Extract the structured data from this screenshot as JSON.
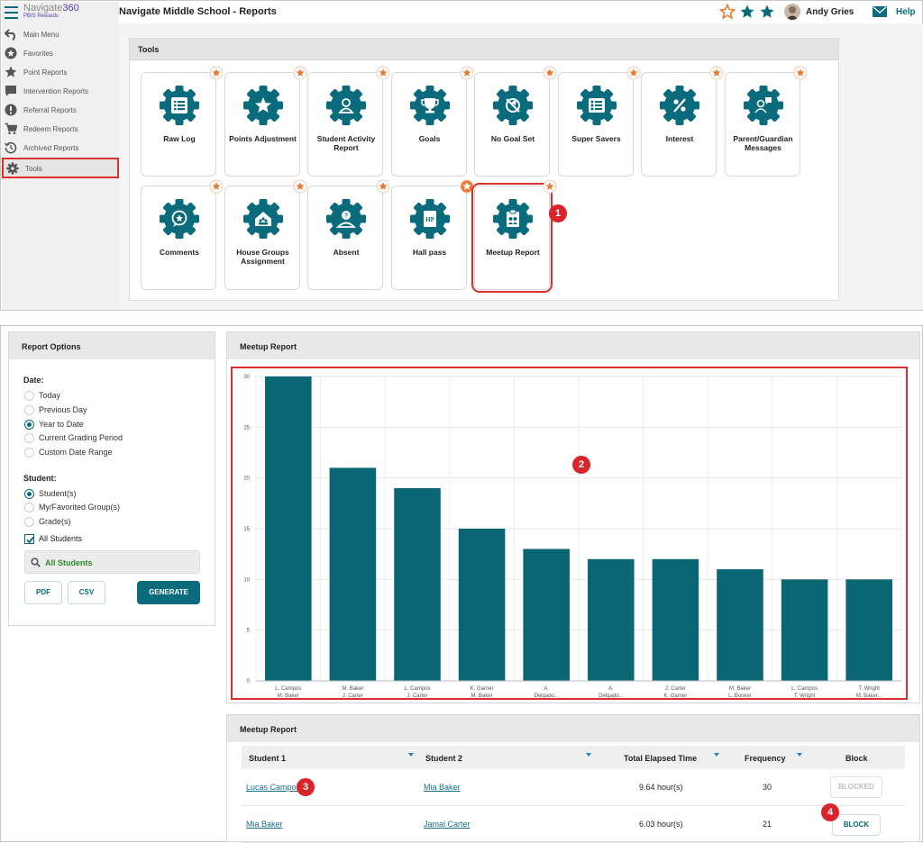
{
  "app": {
    "logo_text": "Navigate",
    "logo_num": "360",
    "logo_sub": "PBIS Rewards",
    "page_title": "Navigate Middle School - Reports"
  },
  "header": {
    "user_name": "Andy Gries",
    "help_label": "Help"
  },
  "sidebar": {
    "items": [
      {
        "label": "Main Menu",
        "icon": "back-arrow-icon"
      },
      {
        "label": "Favorites",
        "icon": "star-circle-icon"
      },
      {
        "label": "Point Reports",
        "icon": "star-icon"
      },
      {
        "label": "Intervention Reports",
        "icon": "speech-bubble-icon"
      },
      {
        "label": "Referral Reports",
        "icon": "alert-icon"
      },
      {
        "label": "Redeem Reports",
        "icon": "cart-icon"
      },
      {
        "label": "Archived Reports",
        "icon": "history-icon"
      },
      {
        "label": "Tools",
        "icon": "gear-icon"
      }
    ]
  },
  "tools": {
    "title": "Tools",
    "cards": [
      {
        "label": "Raw Log",
        "icon": "list-icon"
      },
      {
        "label": "Points Adjustment",
        "icon": "star-icon"
      },
      {
        "label": "Student Activity Report",
        "icon": "person-icon"
      },
      {
        "label": "Goals",
        "icon": "trophy-icon"
      },
      {
        "label": "No Goal Set",
        "icon": "no-goal-icon"
      },
      {
        "label": "Super Savers",
        "icon": "savers-list-icon"
      },
      {
        "label": "Interest",
        "icon": "percent-icon"
      },
      {
        "label": "Parent/Guardian Messages",
        "icon": "parent-message-icon"
      },
      {
        "label": "Comments",
        "icon": "comment-icon"
      },
      {
        "label": "House Groups Assignment",
        "icon": "house-icon"
      },
      {
        "label": "Absent",
        "icon": "absent-person-icon"
      },
      {
        "label": "Hall pass",
        "icon": "hall-pass-icon"
      },
      {
        "label": "Meetup Report",
        "icon": "meetup-clipboard-icon"
      }
    ]
  },
  "markers": [
    "1",
    "2",
    "3",
    "4"
  ],
  "options": {
    "title": "Report Options",
    "date_label": "Date:",
    "date_options": [
      "Today",
      "Previous Day",
      "Year to Date",
      "Current Grading Period",
      "Custom Date Range"
    ],
    "date_selected": "Year to Date",
    "student_label": "Student:",
    "student_options": [
      "Student(s)",
      "My/Favorited Group(s)",
      "Grade(s)"
    ],
    "student_selected": "Student(s)",
    "all_students_check": "All Students",
    "search_value": "All Students",
    "pdf": "PDF",
    "csv": "CSV",
    "generate": "GENERATE"
  },
  "chart_title": "Meetup Report",
  "chart_data": {
    "type": "bar",
    "categories": [
      [
        "L. Campos",
        "M. Baker"
      ],
      [
        "M. Baker",
        "J. Carter"
      ],
      [
        "L. Campos",
        "J. Carter"
      ],
      [
        "K. Garner",
        "M. Baker"
      ],
      [
        "A.",
        "Delgado..."
      ],
      [
        "A.",
        "Delgado..."
      ],
      [
        "J. Carter",
        "K. Garner"
      ],
      [
        "M. Baker",
        "L. Booker"
      ],
      [
        "L. Campos",
        "T. Wright"
      ],
      [
        "T. Wright",
        "M. Baker..."
      ]
    ],
    "values": [
      30,
      21,
      19,
      15,
      13,
      12,
      12,
      11,
      10,
      10
    ],
    "ylim": [
      0,
      30
    ],
    "yticks": [
      0,
      5,
      10,
      15,
      20,
      25,
      30
    ],
    "grid": true,
    "color": "#0b6673"
  },
  "table": {
    "title": "Meetup Report",
    "columns": [
      "Student 1",
      "Student 2",
      "Total Elapsed Time",
      "Frequency",
      "Block"
    ],
    "rows": [
      {
        "student1": "Lucas Campos",
        "student2": "Mia Baker",
        "time": "9.64 hour(s)",
        "frequency": "30",
        "block": "BLOCKED"
      },
      {
        "student1": "Mia Baker",
        "student2": "Jamal Carter",
        "time": "6.03 hour(s)",
        "frequency": "21",
        "block": "BLOCK"
      }
    ]
  }
}
